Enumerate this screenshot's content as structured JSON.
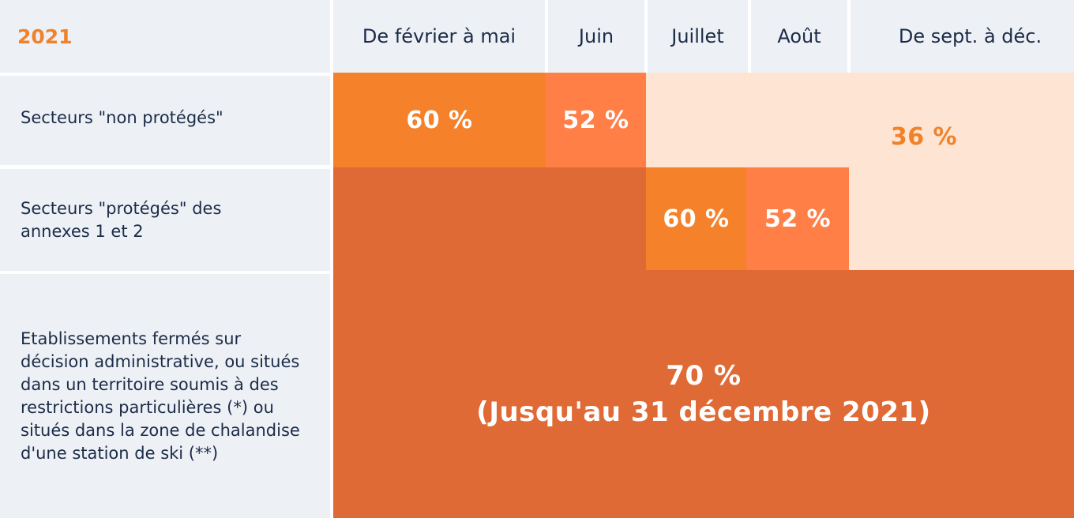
{
  "colors": {
    "header_bg": "#edf1f6",
    "dark_orange": "#e06a35",
    "orange": "#f5822a",
    "light_orange": "#ff7f47",
    "pale_orange": "#fee4d2",
    "text_navy": "#1c2b47",
    "year_orange": "#f0822a"
  },
  "header": {
    "year": "2021",
    "columns": [
      "De février à mai",
      "Juin",
      "Juillet",
      "Août",
      "De sept. à déc."
    ]
  },
  "rows": [
    {
      "label": "Secteurs \"non protégés\""
    },
    {
      "label": "Secteurs \"protégés\" des annexes 1 et 2"
    },
    {
      "label": "Etablissements fermés sur décision administrative, ou situés dans un territoire soumis à des restrictions particulières (*) ou situés dans la zone de chalandise d'une station de ski (**)"
    }
  ],
  "values": {
    "non_proteges_feb_may": "60 %",
    "non_proteges_june": "52 %",
    "non_proteges_july_dec": "36 %",
    "proteges_july": "60 %",
    "proteges_august": "52 %",
    "fermes_line1": "70 %",
    "fermes_line2": "(Jusqu'au 31 décembre 2021)"
  }
}
